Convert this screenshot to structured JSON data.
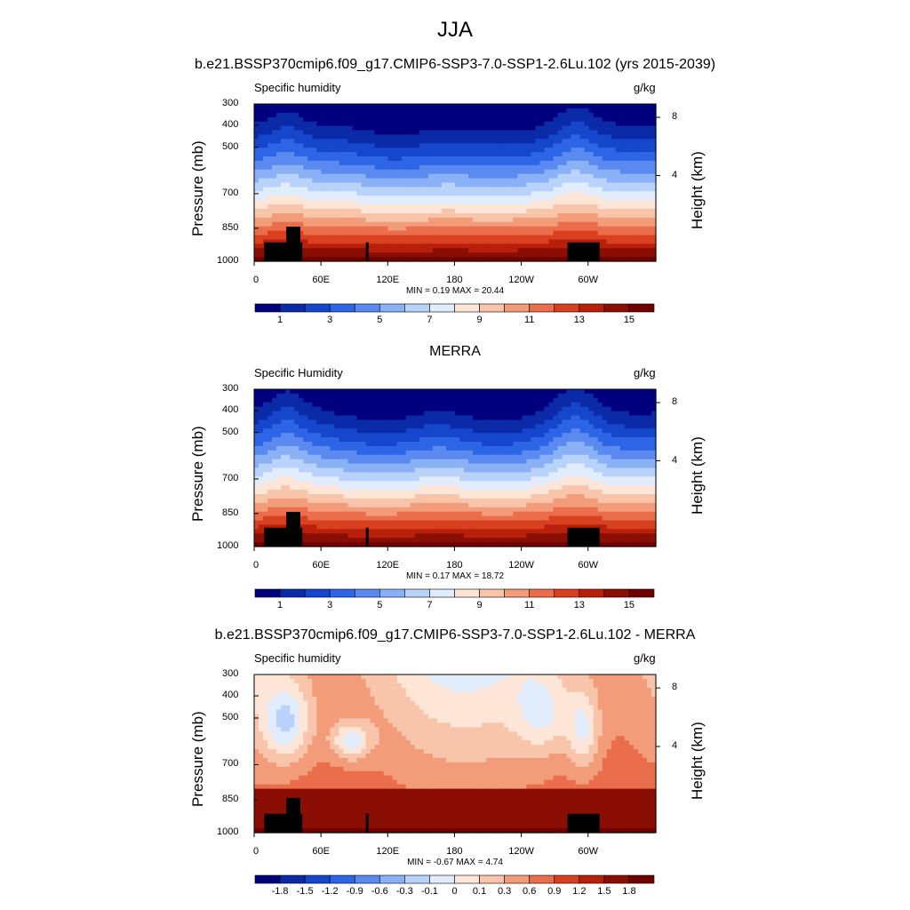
{
  "title": "JJA",
  "chart_data": [
    {
      "type": "heatmap",
      "title": "b.e21.BSSP370cmip6.f09_g17.CMIP6-SSP3-7.0-SSP1-2.6Lu.102 (yrs 2015-2039)",
      "left_string": "Specific humidity",
      "units": "g/kg",
      "ylabel": "Pressure (mb)",
      "y2label": "Height (km)",
      "x_ticks": [
        "0",
        "60E",
        "120E",
        "180",
        "120W",
        "60W"
      ],
      "y_ticks": [
        "300",
        "400",
        "500",
        "700",
        "850",
        "1000"
      ],
      "y2_ticks": [
        "8",
        "4"
      ],
      "stats": "MIN =   0.19  MAX =  20.44",
      "colorbar_labels": [
        "1",
        "3",
        "5",
        "7",
        "9",
        "11",
        "13",
        "15"
      ],
      "min": 0.19,
      "max": 20.44
    },
    {
      "type": "heatmap",
      "title": "MERRA",
      "left_string": "Specific Humidity",
      "units": "g/kg",
      "ylabel": "Pressure (mb)",
      "y2label": "Height (km)",
      "x_ticks": [
        "0",
        "60E",
        "120E",
        "180",
        "120W",
        "60W"
      ],
      "y_ticks": [
        "300",
        "400",
        "500",
        "700",
        "850",
        "1000"
      ],
      "y2_ticks": [
        "8",
        "4"
      ],
      "stats": "MIN =   0.17  MAX =  18.72",
      "colorbar_labels": [
        "1",
        "3",
        "5",
        "7",
        "9",
        "11",
        "13",
        "15"
      ],
      "min": 0.17,
      "max": 18.72
    },
    {
      "type": "heatmap",
      "title": "b.e21.BSSP370cmip6.f09_g17.CMIP6-SSP3-7.0-SSP1-2.6Lu.102 - MERRA",
      "left_string": "Specific humidity",
      "units": "g/kg",
      "ylabel": "Pressure (mb)",
      "y2label": "Height (km)",
      "x_ticks": [
        "0",
        "60E",
        "120E",
        "180",
        "120W",
        "60W"
      ],
      "y_ticks": [
        "300",
        "400",
        "500",
        "700",
        "850",
        "1000"
      ],
      "y2_ticks": [
        "8",
        "4"
      ],
      "stats": "MIN =  -0.67  MAX =   4.74",
      "colorbar_labels": [
        "-1.8",
        "-1.5",
        "-1.2",
        "-0.9",
        "-0.6",
        "-0.3",
        "-0.1",
        "0",
        "0.1",
        "0.3",
        "0.6",
        "0.9",
        "1.2",
        "1.5",
        "1.8"
      ],
      "min": -0.67,
      "max": 4.74
    }
  ],
  "colors": {
    "seq_palette": [
      "#00007f",
      "#0a2aa8",
      "#1546cc",
      "#2d65e6",
      "#5a8af0",
      "#8ab0f5",
      "#b8d2fa",
      "#e1ecfc",
      "#fde6d8",
      "#f8c5aa",
      "#f29c7a",
      "#ea6e4c",
      "#d94020",
      "#b8200c",
      "#8b0e04",
      "#700000"
    ],
    "diff_palette": [
      "#00007f",
      "#0a2aa8",
      "#1546cc",
      "#2d65e6",
      "#5a8af0",
      "#8ab0f5",
      "#b8d2fa",
      "#e1ecfc",
      "#fde6d8",
      "#f8c5aa",
      "#f29c7a",
      "#ea6e4c",
      "#d94020",
      "#b8200c",
      "#8b0e04",
      "#700000"
    ],
    "topography": "#000000"
  }
}
